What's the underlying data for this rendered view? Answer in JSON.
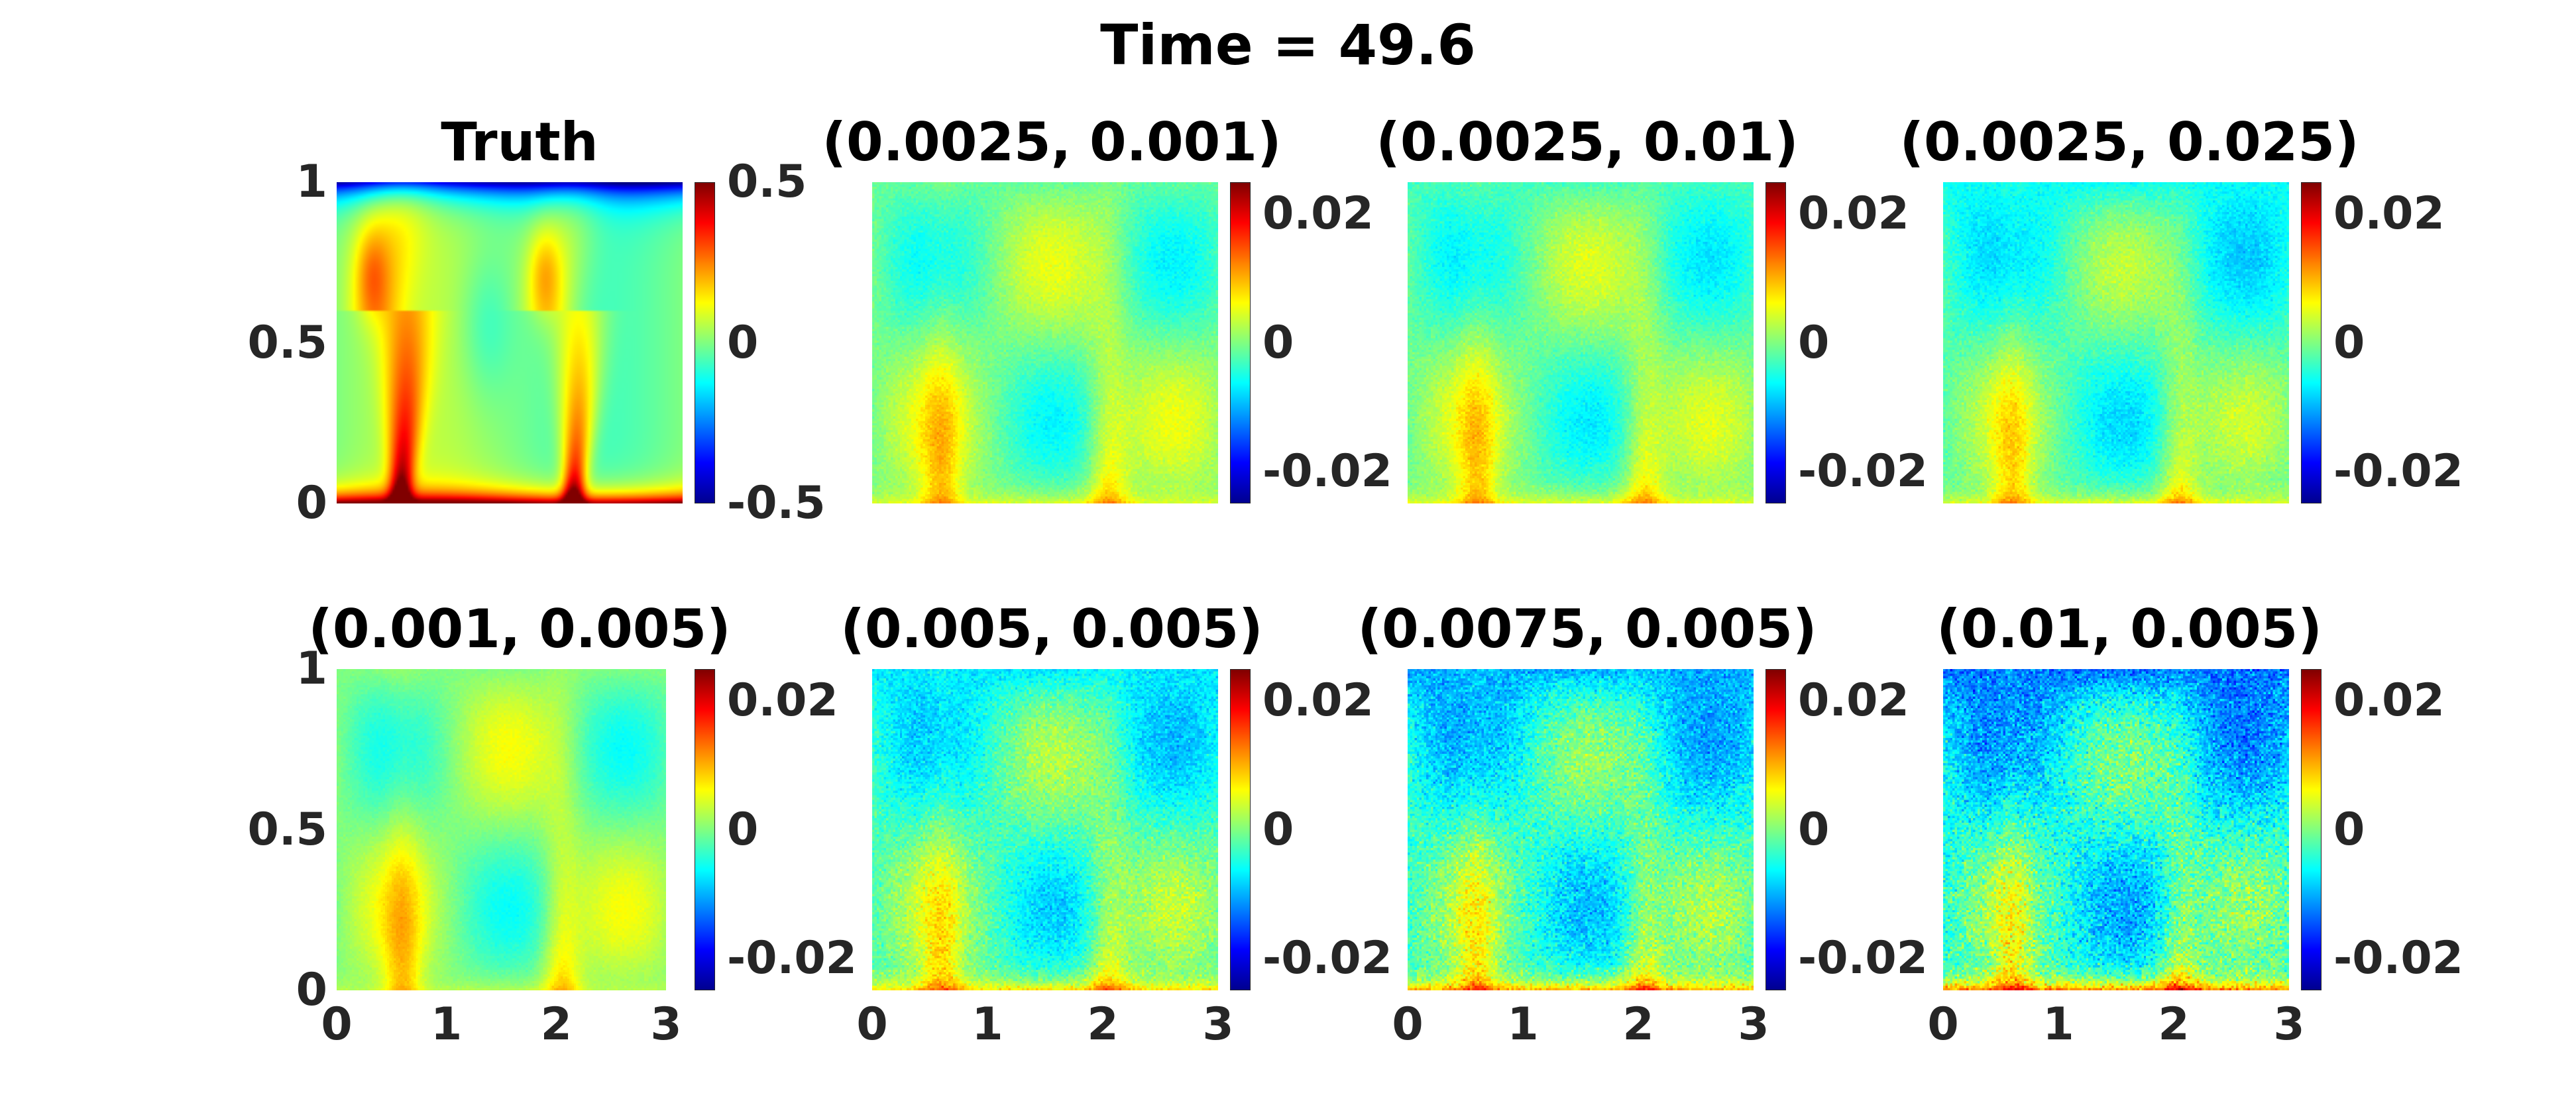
{
  "suptitle": "Time = 49.6",
  "colormap": "jet",
  "colors": {
    "text": "#262626",
    "title": "#000000"
  },
  "chart_data": [
    {
      "type": "heatmap",
      "title": "Truth",
      "field": "truth",
      "x_range": [
        0,
        3
      ],
      "y_range": [
        0,
        1
      ],
      "yticks": [
        "1",
        "0.5",
        "0"
      ],
      "xticks": [],
      "clim": [
        -0.5,
        0.5
      ],
      "colorbar_ticks": [
        "0.5",
        "0",
        "-0.5"
      ]
    },
    {
      "type": "heatmap",
      "title": "(0.0025, 0.001)",
      "field": "error",
      "x_range": [
        0,
        3
      ],
      "y_range": [
        0,
        1
      ],
      "yticks": [],
      "xticks": [],
      "clim": [
        -0.025,
        0.025
      ],
      "colorbar_ticks": [
        "0.02",
        "0",
        "-0.02"
      ]
    },
    {
      "type": "heatmap",
      "title": "(0.0025, 0.01)",
      "field": "error",
      "x_range": [
        0,
        3
      ],
      "y_range": [
        0,
        1
      ],
      "yticks": [],
      "xticks": [],
      "clim": [
        -0.025,
        0.025
      ],
      "colorbar_ticks": [
        "0.02",
        "0",
        "-0.02"
      ]
    },
    {
      "type": "heatmap",
      "title": "(0.0025, 0.025)",
      "field": "error",
      "x_range": [
        0,
        3
      ],
      "y_range": [
        0,
        1
      ],
      "yticks": [],
      "xticks": [],
      "clim": [
        -0.025,
        0.025
      ],
      "colorbar_ticks": [
        "0.02",
        "0",
        "-0.02"
      ]
    },
    {
      "type": "heatmap",
      "title": "(0.001, 0.005)",
      "field": "error",
      "x_range": [
        0,
        3
      ],
      "y_range": [
        0,
        1
      ],
      "yticks": [
        "1",
        "0.5",
        "0"
      ],
      "xticks": [
        "0",
        "1",
        "2",
        "3"
      ],
      "clim": [
        -0.025,
        0.025
      ],
      "colorbar_ticks": [
        "0.02",
        "0",
        "-0.02"
      ]
    },
    {
      "type": "heatmap",
      "title": "(0.005, 0.005)",
      "field": "error",
      "x_range": [
        0,
        3
      ],
      "y_range": [
        0,
        1
      ],
      "yticks": [],
      "xticks": [
        "0",
        "1",
        "2",
        "3"
      ],
      "clim": [
        -0.025,
        0.025
      ],
      "colorbar_ticks": [
        "0.02",
        "0",
        "-0.02"
      ]
    },
    {
      "type": "heatmap",
      "title": "(0.0075, 0.005)",
      "field": "error",
      "x_range": [
        0,
        3
      ],
      "y_range": [
        0,
        1
      ],
      "yticks": [],
      "xticks": [
        "0",
        "1",
        "2",
        "3"
      ],
      "clim": [
        -0.025,
        0.025
      ],
      "colorbar_ticks": [
        "0.02",
        "0",
        "-0.02"
      ]
    },
    {
      "type": "heatmap",
      "title": "(0.01, 0.005)",
      "field": "error",
      "x_range": [
        0,
        3
      ],
      "y_range": [
        0,
        1
      ],
      "yticks": [],
      "xticks": [
        "0",
        "1",
        "2",
        "3"
      ],
      "clim": [
        -0.025,
        0.025
      ],
      "colorbar_ticks": [
        "0.02",
        "0",
        "-0.02"
      ]
    }
  ]
}
